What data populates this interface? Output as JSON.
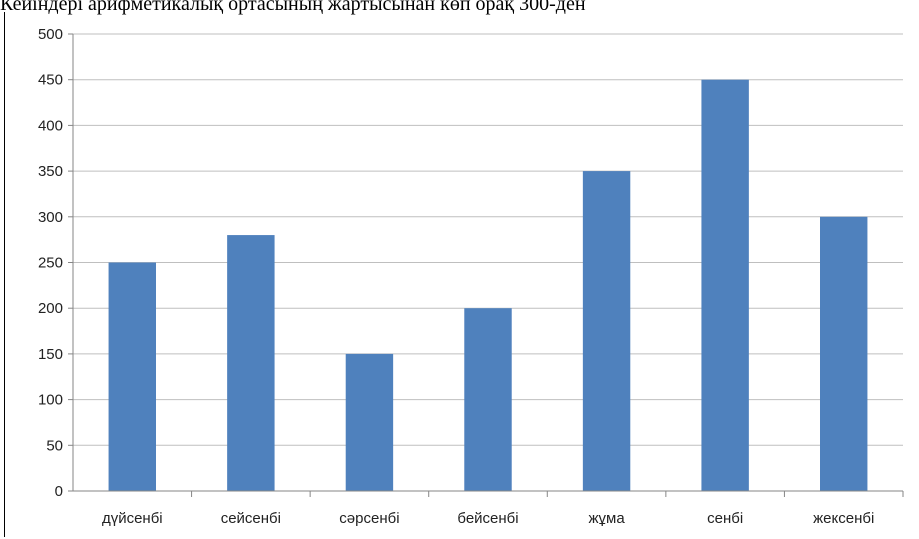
{
  "heading": "Кейіндері арифметикалық ортасының жартысынан көп орақ 300-ден",
  "colors": {
    "bar": "#4f81bd",
    "grid": "#bfbfbf",
    "axis": "#868686"
  },
  "chart_data": {
    "type": "bar",
    "title": "",
    "xlabel": "",
    "ylabel": "",
    "categories": [
      "дүйсенбі",
      "сейсенбі",
      "сәрсенбі",
      "бейсенбі",
      "жұма",
      "сенбі",
      "жексенбі"
    ],
    "values": [
      250,
      280,
      150,
      200,
      350,
      450,
      300
    ],
    "ylim": [
      0,
      500
    ],
    "yticks": [
      0,
      50,
      100,
      150,
      200,
      250,
      300,
      350,
      400,
      450,
      500
    ],
    "grid": true,
    "legend": "none"
  }
}
